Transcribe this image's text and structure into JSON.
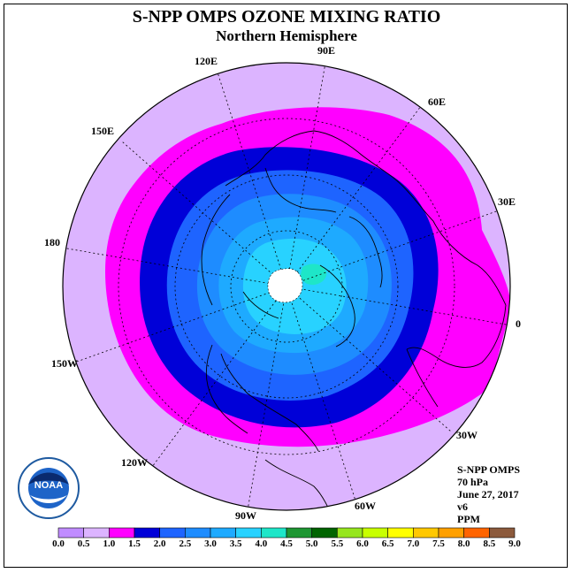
{
  "title": "S-NPP OMPS OZONE MIXING RATIO",
  "subtitle": "Northern Hemisphere",
  "longitude_labels": {
    "lon_90e": "90E",
    "lon_120e": "120E",
    "lon_60e": "60E",
    "lon_150e": "150E",
    "lon_30e": "30E",
    "lon_180": "180",
    "lon_0": "0",
    "lon_150w": "150W",
    "lon_30w": "30W",
    "lon_120w": "120W",
    "lon_60w": "60W",
    "lon_90w": "90W"
  },
  "info": {
    "instrument": "S-NPP OMPS",
    "level": "70 hPa",
    "date": "June 27, 2017",
    "version": "v6",
    "units": "PPM"
  },
  "colorbar": {
    "ticks": [
      "0.0",
      "0.5",
      "1.0",
      "1.5",
      "2.0",
      "2.5",
      "3.0",
      "3.5",
      "4.0",
      "4.5",
      "5.0",
      "5.5",
      "6.0",
      "6.5",
      "7.0",
      "7.5",
      "8.0",
      "8.5",
      "9.0"
    ],
    "colors": [
      "#c08cff",
      "#dcb4ff",
      "#ff00ff",
      "#0000d8",
      "#1e64ff",
      "#1e8cff",
      "#1eaaff",
      "#28d2ff",
      "#1ee6c8",
      "#1e9632",
      "#006400",
      "#96e61e",
      "#c8ff00",
      "#ffff00",
      "#ffc800",
      "#ffa000",
      "#ff6400",
      "#ff0000",
      "#8c5a3c"
    ]
  },
  "map_colors": {
    "level_0_5": "#dcb4ff",
    "level_1_0": "#ff00ff",
    "level_1_5": "#0000d8",
    "level_2_0": "#1e64ff",
    "level_2_5": "#1e8cff",
    "level_3_0": "#1eaaff",
    "level_3_5": "#28d2ff",
    "level_4_0": "#1ee6c8"
  },
  "logo_text": "NOAA"
}
